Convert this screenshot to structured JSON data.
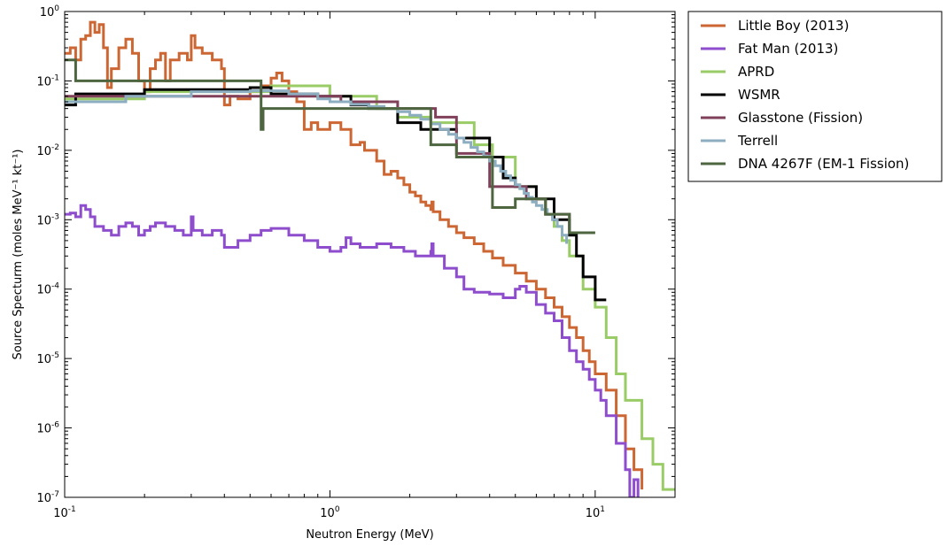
{
  "chart_data": {
    "type": "line",
    "title": "",
    "xlabel": "Neutron Energy (MeV)",
    "ylabel": "Source Specturm (moles MeV⁻¹ kt⁻¹)",
    "xscale": "log",
    "yscale": "log",
    "xlim": [
      0.1,
      20
    ],
    "ylim": [
      1e-07,
      1
    ],
    "legend_position": "outside-right-top",
    "x_ticks": [
      {
        "value": 0.1,
        "base": "10",
        "exp": "-1"
      },
      {
        "value": 1,
        "base": "10",
        "exp": "0"
      },
      {
        "value": 10,
        "base": "10",
        "exp": "1"
      }
    ],
    "y_ticks": [
      {
        "value": 1e-07,
        "base": "10",
        "exp": "-7"
      },
      {
        "value": 1e-06,
        "base": "10",
        "exp": "-6"
      },
      {
        "value": 1e-05,
        "base": "10",
        "exp": "-5"
      },
      {
        "value": 0.0001,
        "base": "10",
        "exp": "-4"
      },
      {
        "value": 0.001,
        "base": "10",
        "exp": "-3"
      },
      {
        "value": 0.01,
        "base": "10",
        "exp": "-2"
      },
      {
        "value": 0.1,
        "base": "10",
        "exp": "-1"
      },
      {
        "value": 1,
        "base": "10",
        "exp": "0"
      }
    ],
    "series": [
      {
        "name": "Little Boy (2013)",
        "color": "#cc6633",
        "points": [
          [
            0.1,
            0.25
          ],
          [
            0.105,
            0.3
          ],
          [
            0.11,
            0.2
          ],
          [
            0.115,
            0.4
          ],
          [
            0.12,
            0.45
          ],
          [
            0.125,
            0.7
          ],
          [
            0.13,
            0.5
          ],
          [
            0.135,
            0.65
          ],
          [
            0.14,
            0.3
          ],
          [
            0.145,
            0.08
          ],
          [
            0.15,
            0.15
          ],
          [
            0.16,
            0.3
          ],
          [
            0.17,
            0.4
          ],
          [
            0.18,
            0.25
          ],
          [
            0.19,
            0.1
          ],
          [
            0.2,
            0.07
          ],
          [
            0.21,
            0.15
          ],
          [
            0.22,
            0.2
          ],
          [
            0.23,
            0.25
          ],
          [
            0.24,
            0.1
          ],
          [
            0.25,
            0.2
          ],
          [
            0.27,
            0.25
          ],
          [
            0.29,
            0.2
          ],
          [
            0.3,
            0.45
          ],
          [
            0.31,
            0.3
          ],
          [
            0.33,
            0.25
          ],
          [
            0.36,
            0.2
          ],
          [
            0.39,
            0.15
          ],
          [
            0.4,
            0.045
          ],
          [
            0.42,
            0.06
          ],
          [
            0.45,
            0.055
          ],
          [
            0.5,
            0.07
          ],
          [
            0.55,
            0.085
          ],
          [
            0.6,
            0.11
          ],
          [
            0.63,
            0.13
          ],
          [
            0.66,
            0.1
          ],
          [
            0.7,
            0.07
          ],
          [
            0.75,
            0.05
          ],
          [
            0.8,
            0.02
          ],
          [
            0.85,
            0.025
          ],
          [
            0.9,
            0.02
          ],
          [
            1.0,
            0.025
          ],
          [
            1.1,
            0.02
          ],
          [
            1.2,
            0.012
          ],
          [
            1.3,
            0.013
          ],
          [
            1.35,
            0.01
          ],
          [
            1.5,
            0.007
          ],
          [
            1.6,
            0.0045
          ],
          [
            1.7,
            0.005
          ],
          [
            1.8,
            0.004
          ],
          [
            1.9,
            0.0032
          ],
          [
            2.0,
            0.0025
          ],
          [
            2.1,
            0.0022
          ],
          [
            2.2,
            0.0018
          ],
          [
            2.3,
            0.0016
          ],
          [
            2.4,
            0.0014
          ],
          [
            2.42,
            0.0018
          ],
          [
            2.45,
            0.0013
          ],
          [
            2.6,
            0.001
          ],
          [
            2.8,
            0.0008
          ],
          [
            3.0,
            0.00065
          ],
          [
            3.2,
            0.00055
          ],
          [
            3.5,
            0.00045
          ],
          [
            3.8,
            0.00035
          ],
          [
            4.1,
            0.00028
          ],
          [
            4.5,
            0.00022
          ],
          [
            5.0,
            0.00017
          ],
          [
            5.5,
            0.00013
          ],
          [
            6.0,
            0.0001
          ],
          [
            6.5,
            7.5e-05
          ],
          [
            7.0,
            5.5e-05
          ],
          [
            7.5,
            4e-05
          ],
          [
            8.0,
            2.8e-05
          ],
          [
            8.5,
            2e-05
          ],
          [
            9.0,
            1.3e-05
          ],
          [
            9.5,
            9e-06
          ],
          [
            10.0,
            6e-06
          ],
          [
            11.0,
            3.5e-06
          ],
          [
            12.0,
            1.5e-06
          ],
          [
            13.0,
            5e-07
          ],
          [
            14.0,
            2.5e-07
          ],
          [
            15.0,
            1.3e-07
          ]
        ]
      },
      {
        "name": "Fat Man (2013)",
        "color": "#8e4dcc",
        "points": [
          [
            0.1,
            0.0012
          ],
          [
            0.105,
            0.00125
          ],
          [
            0.11,
            0.0011
          ],
          [
            0.115,
            0.0016
          ],
          [
            0.12,
            0.0014
          ],
          [
            0.125,
            0.0011
          ],
          [
            0.13,
            0.0008
          ],
          [
            0.14,
            0.0007
          ],
          [
            0.15,
            0.0006
          ],
          [
            0.16,
            0.0008
          ],
          [
            0.17,
            0.0009
          ],
          [
            0.18,
            0.0008
          ],
          [
            0.19,
            0.0006
          ],
          [
            0.2,
            0.0007
          ],
          [
            0.21,
            0.0008
          ],
          [
            0.22,
            0.0009
          ],
          [
            0.24,
            0.0008
          ],
          [
            0.26,
            0.0007
          ],
          [
            0.28,
            0.0006
          ],
          [
            0.3,
            0.0011
          ],
          [
            0.305,
            0.0007
          ],
          [
            0.33,
            0.0006
          ],
          [
            0.36,
            0.0007
          ],
          [
            0.39,
            0.0006
          ],
          [
            0.4,
            0.0004
          ],
          [
            0.45,
            0.0005
          ],
          [
            0.5,
            0.0006
          ],
          [
            0.55,
            0.0007
          ],
          [
            0.6,
            0.00075
          ],
          [
            0.7,
            0.0006
          ],
          [
            0.8,
            0.0005
          ],
          [
            0.9,
            0.0004
          ],
          [
            1.0,
            0.00035
          ],
          [
            1.1,
            0.0004
          ],
          [
            1.15,
            0.00055
          ],
          [
            1.2,
            0.00045
          ],
          [
            1.3,
            0.0004
          ],
          [
            1.5,
            0.00045
          ],
          [
            1.7,
            0.0004
          ],
          [
            1.9,
            0.00035
          ],
          [
            2.1,
            0.0003
          ],
          [
            2.4,
            0.00035
          ],
          [
            2.42,
            0.00045
          ],
          [
            2.45,
            0.0003
          ],
          [
            2.7,
            0.0002
          ],
          [
            3.0,
            0.00015
          ],
          [
            3.2,
            0.0001
          ],
          [
            3.5,
            9e-05
          ],
          [
            4.0,
            8.5e-05
          ],
          [
            4.5,
            7.5e-05
          ],
          [
            5.0,
            0.0001
          ],
          [
            5.2,
            0.00011
          ],
          [
            5.5,
            9e-05
          ],
          [
            6.0,
            6e-05
          ],
          [
            6.5,
            4.5e-05
          ],
          [
            7.0,
            3.5e-05
          ],
          [
            7.5,
            2e-05
          ],
          [
            8.0,
            1.3e-05
          ],
          [
            8.5,
            9e-06
          ],
          [
            9.0,
            7e-06
          ],
          [
            9.5,
            5e-06
          ],
          [
            10.0,
            3.5e-06
          ],
          [
            10.5,
            2.5e-06
          ],
          [
            11.0,
            1.5e-06
          ],
          [
            12.0,
            6e-07
          ],
          [
            13.0,
            2.5e-07
          ],
          [
            13.5,
            1e-07
          ],
          [
            14.0,
            1.8e-07
          ],
          [
            14.5,
            1e-07
          ]
        ]
      },
      {
        "name": "APRD",
        "color": "#99cc66",
        "points": [
          [
            0.1,
            0.055
          ],
          [
            0.2,
            0.07
          ],
          [
            0.6,
            0.085
          ],
          [
            1.0,
            0.06
          ],
          [
            1.5,
            0.04
          ],
          [
            1.8,
            0.03
          ],
          [
            2.4,
            0.025
          ],
          [
            3.5,
            0.012
          ],
          [
            4.1,
            0.008
          ],
          [
            5.0,
            0.003
          ],
          [
            6.0,
            0.002
          ],
          [
            6.5,
            0.0012
          ],
          [
            7.0,
            0.0008
          ],
          [
            7.5,
            0.0005
          ],
          [
            8.0,
            0.0003
          ],
          [
            9.0,
            0.0001
          ],
          [
            10.0,
            5.5e-05
          ],
          [
            11.0,
            2e-05
          ],
          [
            12.0,
            6e-06
          ],
          [
            13.0,
            2.5e-06
          ],
          [
            15.0,
            7e-07
          ],
          [
            16.5,
            3e-07
          ],
          [
            18.0,
            1.3e-07
          ],
          [
            20.0,
            1.3e-07
          ]
        ]
      },
      {
        "name": "WSMR",
        "color": "#000000",
        "points": [
          [
            0.1,
            0.045
          ],
          [
            0.11,
            0.065
          ],
          [
            0.2,
            0.075
          ],
          [
            0.5,
            0.08
          ],
          [
            0.6,
            0.065
          ],
          [
            0.9,
            0.06
          ],
          [
            1.2,
            0.045
          ],
          [
            1.4,
            0.04
          ],
          [
            1.8,
            0.025
          ],
          [
            2.2,
            0.02
          ],
          [
            3.0,
            0.015
          ],
          [
            4.0,
            0.008
          ],
          [
            4.5,
            0.004
          ],
          [
            5.0,
            0.003
          ],
          [
            6.0,
            0.002
          ],
          [
            7.0,
            0.001
          ],
          [
            8.0,
            0.0006
          ],
          [
            8.5,
            0.0003
          ],
          [
            9.0,
            0.00015
          ],
          [
            10.0,
            7e-05
          ],
          [
            11.0,
            7e-05
          ]
        ]
      },
      {
        "name": "Glasstone (Fission)",
        "color": "#80405a",
        "points": [
          [
            0.1,
            0.06
          ],
          [
            1.1,
            0.05
          ],
          [
            1.8,
            0.04
          ],
          [
            2.5,
            0.03
          ],
          [
            3.0,
            0.009
          ],
          [
            4.0,
            0.003
          ],
          [
            5.5,
            0.002
          ],
          [
            6.5,
            0.0012
          ],
          [
            8.0,
            0.00065
          ]
        ]
      },
      {
        "name": "Terrell",
        "color": "#8caec0",
        "points": [
          [
            0.1,
            0.05
          ],
          [
            0.17,
            0.06
          ],
          [
            0.3,
            0.07
          ],
          [
            0.5,
            0.072
          ],
          [
            0.7,
            0.065
          ],
          [
            0.9,
            0.055
          ],
          [
            1.0,
            0.05
          ],
          [
            1.2,
            0.046
          ],
          [
            1.4,
            0.043
          ],
          [
            1.6,
            0.04
          ],
          [
            1.8,
            0.036
          ],
          [
            2.0,
            0.032
          ],
          [
            2.2,
            0.028
          ],
          [
            2.4,
            0.024
          ],
          [
            2.6,
            0.02
          ],
          [
            2.8,
            0.017
          ],
          [
            3.0,
            0.015
          ],
          [
            3.2,
            0.013
          ],
          [
            3.4,
            0.011
          ],
          [
            3.6,
            0.0095
          ],
          [
            3.8,
            0.0082
          ],
          [
            4.0,
            0.007
          ],
          [
            4.2,
            0.006
          ],
          [
            4.4,
            0.005
          ],
          [
            4.6,
            0.0043
          ],
          [
            4.8,
            0.0037
          ],
          [
            5.0,
            0.0032
          ],
          [
            5.2,
            0.0028
          ],
          [
            5.4,
            0.0024
          ],
          [
            5.6,
            0.0021
          ],
          [
            5.8,
            0.0018
          ],
          [
            6.0,
            0.0016
          ],
          [
            6.3,
            0.0014
          ],
          [
            6.6,
            0.0012
          ],
          [
            6.9,
            0.001
          ],
          [
            7.2,
            0.0008
          ],
          [
            7.5,
            0.0006
          ],
          [
            7.8,
            0.00045
          ]
        ]
      },
      {
        "name": "DNA 4267F (EM-1 Fission)",
        "color": "#4d6640",
        "points": [
          [
            0.1,
            0.2
          ],
          [
            0.11,
            0.1
          ],
          [
            0.55,
            0.02
          ],
          [
            0.56,
            0.04
          ],
          [
            1.0,
            0.04
          ],
          [
            1.5,
            0.04
          ],
          [
            2.4,
            0.012
          ],
          [
            3.0,
            0.008
          ],
          [
            4.1,
            0.0015
          ],
          [
            5.0,
            0.002
          ],
          [
            6.5,
            0.0012
          ],
          [
            8.0,
            0.00065
          ],
          [
            10.0,
            0.00065
          ]
        ]
      }
    ]
  }
}
